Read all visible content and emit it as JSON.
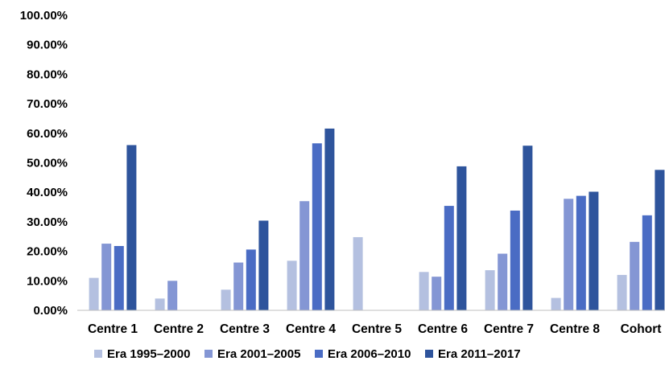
{
  "chart_data": {
    "type": "bar",
    "categories": [
      "Centre 1",
      "Centre 2",
      "Centre 3",
      "Centre 4",
      "Centre 5",
      "Centre 6",
      "Centre 7",
      "Centre 8",
      "Cohort"
    ],
    "series": [
      {
        "name": "Era 1995–2000",
        "color": "#b4c0e0",
        "values": [
          11.0,
          4.0,
          7.0,
          16.8,
          24.8,
          13.0,
          13.6,
          4.2,
          12.0
        ]
      },
      {
        "name": "Era 2001–2005",
        "color": "#8496d4",
        "values": [
          22.6,
          10.0,
          16.2,
          37.0,
          null,
          11.4,
          19.2,
          37.8,
          23.2
        ]
      },
      {
        "name": "Era 2006–2010",
        "color": "#4a6cc4",
        "values": [
          21.8,
          null,
          20.6,
          56.6,
          null,
          35.4,
          33.8,
          38.8,
          32.2
        ]
      },
      {
        "name": "Era 2011–2017",
        "color": "#2e549c",
        "values": [
          56.0,
          null,
          30.4,
          61.6,
          null,
          48.8,
          55.8,
          40.2,
          47.6
        ]
      }
    ],
    "ylim": [
      0,
      100
    ],
    "yticks": [
      0,
      10,
      20,
      30,
      40,
      50,
      60,
      70,
      80,
      90,
      100
    ],
    "ytick_labels": [
      "0.00%",
      "10.00%",
      "20.00%",
      "30.00%",
      "40.00%",
      "50.00%",
      "60.00%",
      "70.00%",
      "80.00%",
      "90.00%",
      "100.00%"
    ],
    "grid": false,
    "legend_position": "bottom",
    "title": "",
    "xlabel": "",
    "ylabel": ""
  }
}
